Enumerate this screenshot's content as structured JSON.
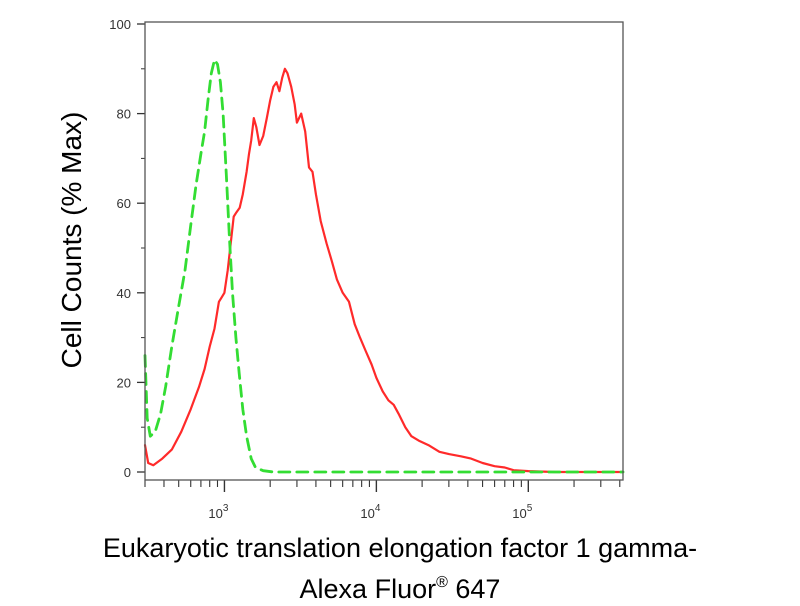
{
  "chart_data": {
    "type": "line",
    "title": "",
    "ylabel": "Cell Counts (% Max)",
    "xlabel": {
      "line1": "Eukaryotic translation elongation factor 1 gamma-",
      "line2_prefix": "Alexa Fluor",
      "line2_mark": "®",
      "line2_suffix": " 647"
    },
    "x_scale": "log",
    "xlim": [
      300,
      420000
    ],
    "ylim": [
      0,
      100
    ],
    "y_ticks": [
      {
        "value": 0,
        "label": "0"
      },
      {
        "value": 20,
        "label": "20"
      },
      {
        "value": 40,
        "label": "40"
      },
      {
        "value": 60,
        "label": "60"
      },
      {
        "value": 80,
        "label": "80"
      },
      {
        "value": 100,
        "label": "100"
      }
    ],
    "x_major_ticks": [
      {
        "value": 1000,
        "base": "10",
        "exp": "3"
      },
      {
        "value": 10000,
        "base": "10",
        "exp": "4"
      },
      {
        "value": 100000,
        "base": "10",
        "exp": "5"
      }
    ],
    "grid": false,
    "legend": "none",
    "series": [
      {
        "color": "#ff2a2a",
        "style": "solid",
        "points": [
          [
            300,
            6
          ],
          [
            315,
            2
          ],
          [
            340,
            1.5
          ],
          [
            390,
            3
          ],
          [
            450,
            5
          ],
          [
            520,
            9
          ],
          [
            600,
            14
          ],
          [
            680,
            19
          ],
          [
            740,
            23
          ],
          [
            800,
            28
          ],
          [
            860,
            32
          ],
          [
            920,
            38
          ],
          [
            960,
            39
          ],
          [
            1000,
            40
          ],
          [
            1050,
            45
          ],
          [
            1100,
            51
          ],
          [
            1150,
            57
          ],
          [
            1200,
            58
          ],
          [
            1260,
            59
          ],
          [
            1320,
            62
          ],
          [
            1400,
            67
          ],
          [
            1450,
            71
          ],
          [
            1500,
            74
          ],
          [
            1560,
            79
          ],
          [
            1620,
            77
          ],
          [
            1700,
            73
          ],
          [
            1800,
            75
          ],
          [
            1900,
            79
          ],
          [
            2000,
            83
          ],
          [
            2100,
            86
          ],
          [
            2200,
            87
          ],
          [
            2300,
            85
          ],
          [
            2400,
            88
          ],
          [
            2500,
            90
          ],
          [
            2600,
            89
          ],
          [
            2750,
            86
          ],
          [
            2900,
            82
          ],
          [
            3000,
            78
          ],
          [
            3200,
            80
          ],
          [
            3400,
            76
          ],
          [
            3600,
            68
          ],
          [
            3800,
            67
          ],
          [
            4000,
            62
          ],
          [
            4300,
            56
          ],
          [
            4700,
            51
          ],
          [
            5100,
            47
          ],
          [
            5500,
            43
          ],
          [
            6000,
            40
          ],
          [
            6600,
            38
          ],
          [
            7200,
            33
          ],
          [
            7800,
            30
          ],
          [
            8500,
            27
          ],
          [
            9300,
            24
          ],
          [
            10000,
            21
          ],
          [
            11000,
            18
          ],
          [
            12000,
            16
          ],
          [
            13000,
            15
          ],
          [
            14000,
            13
          ],
          [
            15500,
            10
          ],
          [
            17000,
            8
          ],
          [
            19000,
            7
          ],
          [
            22000,
            6
          ],
          [
            26000,
            4.5
          ],
          [
            30000,
            4
          ],
          [
            36000,
            3.5
          ],
          [
            42000,
            3
          ],
          [
            50000,
            2
          ],
          [
            60000,
            1.3
          ],
          [
            70000,
            1
          ],
          [
            80000,
            0.4
          ],
          [
            100000,
            0.2
          ],
          [
            150000,
            0
          ],
          [
            420000,
            0
          ]
        ]
      },
      {
        "color": "#33dd33",
        "style": "dashed",
        "points": [
          [
            300,
            26
          ],
          [
            310,
            12
          ],
          [
            325,
            8
          ],
          [
            350,
            9
          ],
          [
            380,
            13
          ],
          [
            410,
            19
          ],
          [
            450,
            28
          ],
          [
            500,
            37
          ],
          [
            550,
            45
          ],
          [
            600,
            55
          ],
          [
            650,
            64
          ],
          [
            700,
            71
          ],
          [
            740,
            76
          ],
          [
            780,
            83
          ],
          [
            820,
            89
          ],
          [
            860,
            92
          ],
          [
            900,
            91
          ],
          [
            940,
            87
          ],
          [
            980,
            80
          ],
          [
            1030,
            66
          ],
          [
            1080,
            52
          ],
          [
            1130,
            40
          ],
          [
            1190,
            30
          ],
          [
            1250,
            22
          ],
          [
            1320,
            14
          ],
          [
            1400,
            8
          ],
          [
            1500,
            3
          ],
          [
            1600,
            1
          ],
          [
            1800,
            0.3
          ],
          [
            2100,
            0
          ],
          [
            420000,
            0
          ]
        ]
      }
    ]
  }
}
